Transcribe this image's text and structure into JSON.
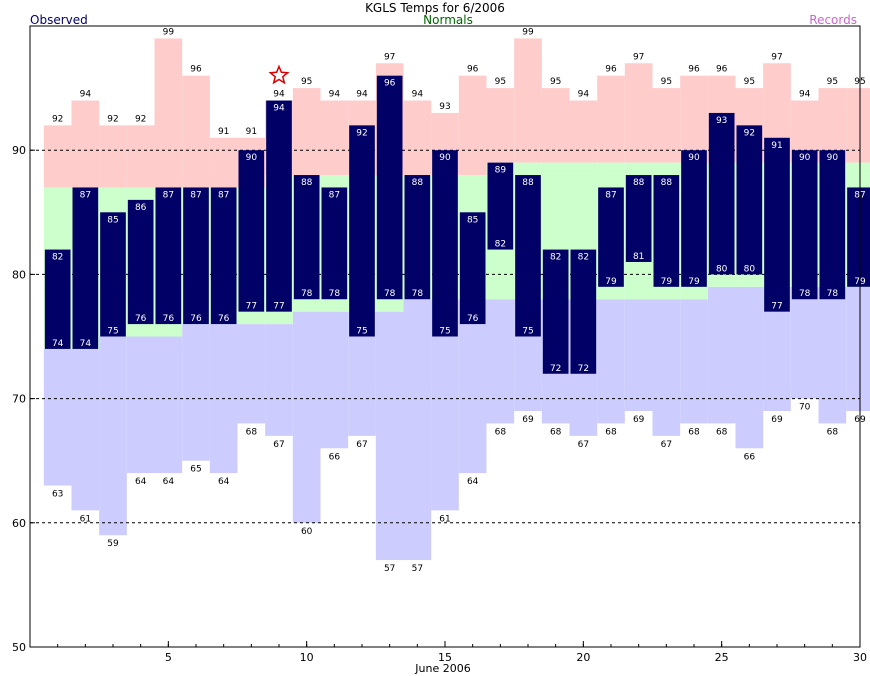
{
  "chart_data": {
    "type": "bar",
    "title": "KGLS Temps for 6/2006",
    "xlabel": "June 2006",
    "ylabel": "",
    "legend": [
      "Observed",
      "Normals",
      "Records"
    ],
    "legend_colors": {
      "Observed": "#000066",
      "Normals": "#006600",
      "Records": "#cc66cc"
    },
    "colors": {
      "observed_bar": "#000066",
      "record_high_band": "#ffcccc",
      "record_low_band": "#ccccff",
      "normal_band": "#ccffcc",
      "label_on_bar": "#ffffff",
      "label_outside": "#000000",
      "star": "#dd0000"
    },
    "x_ticks": [
      5,
      10,
      15,
      20,
      25,
      30
    ],
    "y_ticks": [
      50,
      60,
      70,
      80,
      90
    ],
    "xlim": [
      0.5,
      30.5
    ],
    "ylim": [
      50,
      100
    ],
    "gridlines_y": [
      60,
      70,
      80,
      90
    ],
    "days": [
      1,
      2,
      3,
      4,
      5,
      6,
      7,
      8,
      9,
      10,
      11,
      12,
      13,
      14,
      15,
      16,
      17,
      18,
      19,
      20,
      21,
      22,
      23,
      24,
      25,
      26,
      27,
      28,
      29,
      30
    ],
    "obs_high": [
      82,
      87,
      85,
      86,
      87,
      87,
      87,
      90,
      94,
      88,
      87,
      92,
      96,
      88,
      90,
      85,
      89,
      88,
      82,
      82,
      87,
      88,
      88,
      90,
      93,
      92,
      91,
      90,
      90,
      87
    ],
    "obs_low": [
      74,
      74,
      75,
      76,
      76,
      76,
      76,
      77,
      77,
      78,
      78,
      75,
      78,
      78,
      75,
      76,
      82,
      75,
      72,
      72,
      79,
      81,
      79,
      79,
      80,
      80,
      77,
      78,
      78,
      79
    ],
    "record_high": [
      92,
      94,
      92,
      92,
      99,
      96,
      91,
      91,
      94,
      95,
      94,
      94,
      97,
      94,
      93,
      96,
      95,
      99,
      95,
      94,
      96,
      97,
      95,
      96,
      96,
      95,
      97,
      94,
      95,
      95
    ],
    "record_low": [
      63,
      61,
      59,
      64,
      64,
      65,
      64,
      68,
      67,
      60,
      66,
      67,
      57,
      57,
      61,
      64,
      68,
      69,
      68,
      67,
      68,
      69,
      67,
      68,
      68,
      66,
      69,
      70,
      68,
      69
    ],
    "normal_high": [
      87,
      87,
      87,
      87,
      87,
      87,
      87,
      87,
      88,
      88,
      88,
      88,
      88,
      88,
      88,
      88,
      89,
      89,
      89,
      89,
      89,
      89,
      89,
      89,
      89,
      89,
      89,
      89,
      89,
      89
    ],
    "normal_low": [
      74,
      74,
      75,
      75,
      75,
      76,
      76,
      76,
      76,
      77,
      77,
      77,
      77,
      78,
      78,
      78,
      78,
      78,
      78,
      78,
      78,
      78,
      78,
      78,
      79,
      79,
      79,
      79,
      79,
      79
    ],
    "record_set_days": [
      9
    ]
  }
}
